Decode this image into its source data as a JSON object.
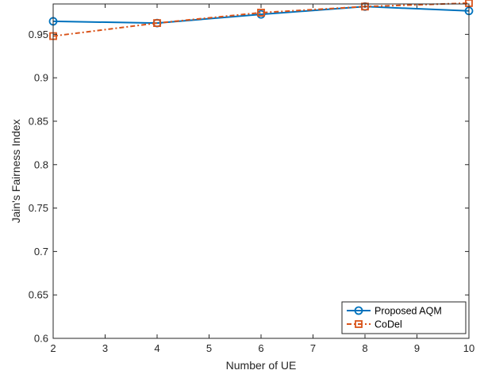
{
  "chart_data": {
    "type": "line",
    "xlabel": "Number of UE",
    "ylabel": "Jain's Fairness Index",
    "xlim": [
      2,
      10
    ],
    "ylim": [
      0.6,
      0.985
    ],
    "xticks": [
      "2",
      "3",
      "4",
      "5",
      "6",
      "7",
      "8",
      "9",
      "10"
    ],
    "yticks": [
      "0.6",
      "0.65",
      "0.7",
      "0.75",
      "0.8",
      "0.85",
      "0.9",
      "0.95"
    ],
    "grid": false,
    "legend_position": "bottom-right",
    "series": [
      {
        "name": "Proposed AQM",
        "color": "#0072BD",
        "marker": "circle",
        "line_style": "solid",
        "x": [
          2,
          4,
          6,
          8,
          10
        ],
        "y": [
          0.965,
          0.963,
          0.973,
          0.982,
          0.977
        ]
      },
      {
        "name": "CoDel",
        "color": "#D95319",
        "marker": "square",
        "line_style": "dash-dot",
        "x": [
          2,
          4,
          6,
          8,
          10
        ],
        "y": [
          0.948,
          0.963,
          0.975,
          0.982,
          0.986
        ]
      }
    ]
  }
}
